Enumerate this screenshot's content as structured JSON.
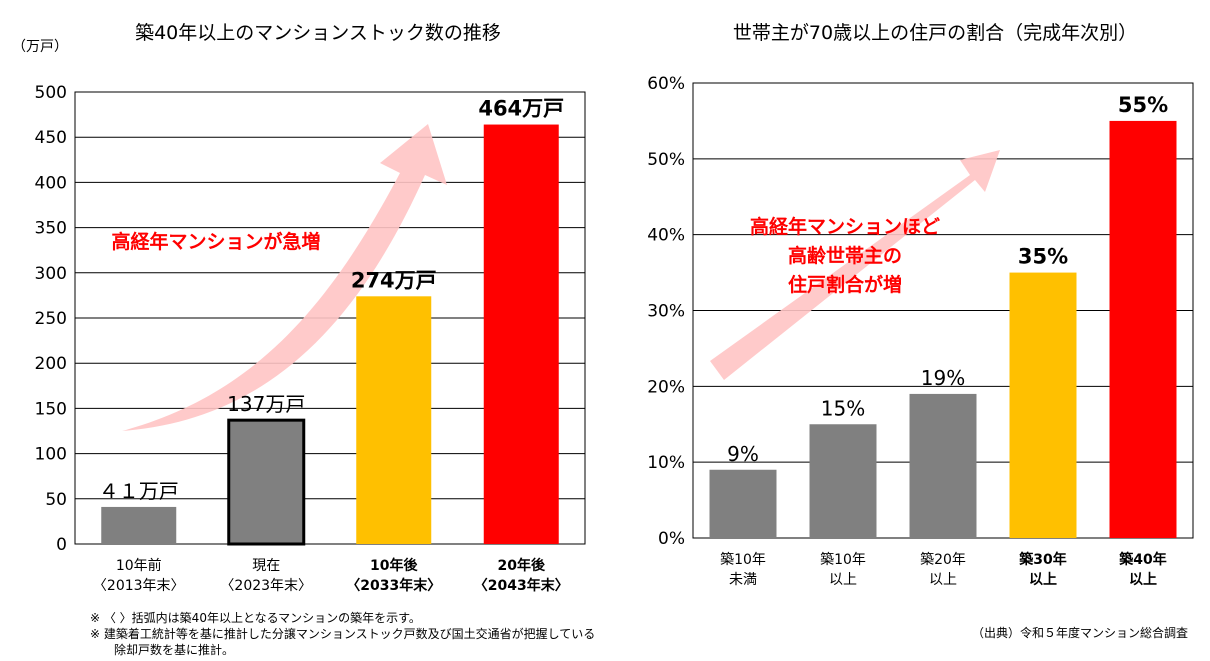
{
  "chart_data": [
    {
      "type": "bar",
      "title": "築40年以上のマンションストック数の推移",
      "unit_label": "（万戸）",
      "ylim": [
        0,
        500
      ],
      "yticks": [
        0,
        50,
        100,
        150,
        200,
        250,
        300,
        350,
        400,
        450,
        500
      ],
      "grid": true,
      "categories": [
        {
          "line1": "10年前",
          "line2": "〈2013年末〉"
        },
        {
          "line1": "現在",
          "line2": "〈2023年末〉"
        },
        {
          "line1": "10年後",
          "line2": "〈2033年末〉"
        },
        {
          "line1": "20年後",
          "line2": "〈2043年末〉"
        }
      ],
      "values": [
        41,
        137,
        274,
        464
      ],
      "data_labels": [
        "４１万戸",
        "137万戸",
        "274万戸",
        "464万戸"
      ],
      "bar_colors": [
        "#808080",
        "#808080",
        "#FFC000",
        "#FF0000"
      ],
      "annotation": "高経年マンションが急増",
      "notes": [
        "※ 〈 〉括弧内は築40年以上となるマンションの築年を示す。",
        "※ 建築着工統計等を基に推計した分譲マンションストック戸数及び国土交通省が把握している",
        "除却戸数を基に推計。"
      ]
    },
    {
      "type": "bar",
      "title": "世帯主が70歳以上の住戸の割合（完成年次別）",
      "ylim": [
        0,
        60
      ],
      "yticks": [
        "0%",
        "10%",
        "20%",
        "30%",
        "40%",
        "50%",
        "60%"
      ],
      "grid": true,
      "categories": [
        {
          "line1": "築10年",
          "line2": "未満"
        },
        {
          "line1": "築10年",
          "line2": "以上"
        },
        {
          "line1": "築20年",
          "line2": "以上"
        },
        {
          "line1": "築30年",
          "line2": "以上"
        },
        {
          "line1": "築40年",
          "line2": "以上"
        }
      ],
      "values": [
        9,
        15,
        19,
        35,
        55
      ],
      "data_labels": [
        "9%",
        "15%",
        "19%",
        "35%",
        "55%"
      ],
      "bar_colors": [
        "#808080",
        "#808080",
        "#808080",
        "#FFC000",
        "#FF0000"
      ],
      "annotation": [
        "高経年マンションほど",
        "高齢世帯主の",
        "住戸割合が増"
      ],
      "source": "（出典）令和５年度マンション総合調査"
    }
  ]
}
